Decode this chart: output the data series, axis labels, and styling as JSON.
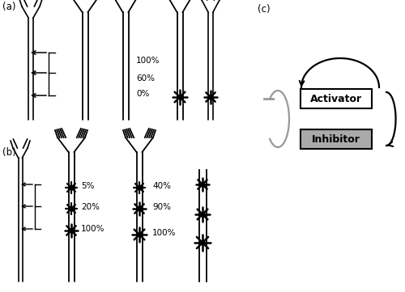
{
  "bg_color": "#ffffff",
  "label_a": "(a)",
  "label_b": "(b)",
  "label_c": "(c)",
  "activator_text": "Activator",
  "inhibitor_text": "Inhibitor",
  "black": "#000000",
  "gray": "#999999",
  "percentages_a": [
    "100%",
    "60%",
    "0%"
  ],
  "percentages_b1": [
    "5%",
    "20%",
    "100%"
  ],
  "percentages_b2": [
    "40%",
    "90%",
    "100%"
  ]
}
